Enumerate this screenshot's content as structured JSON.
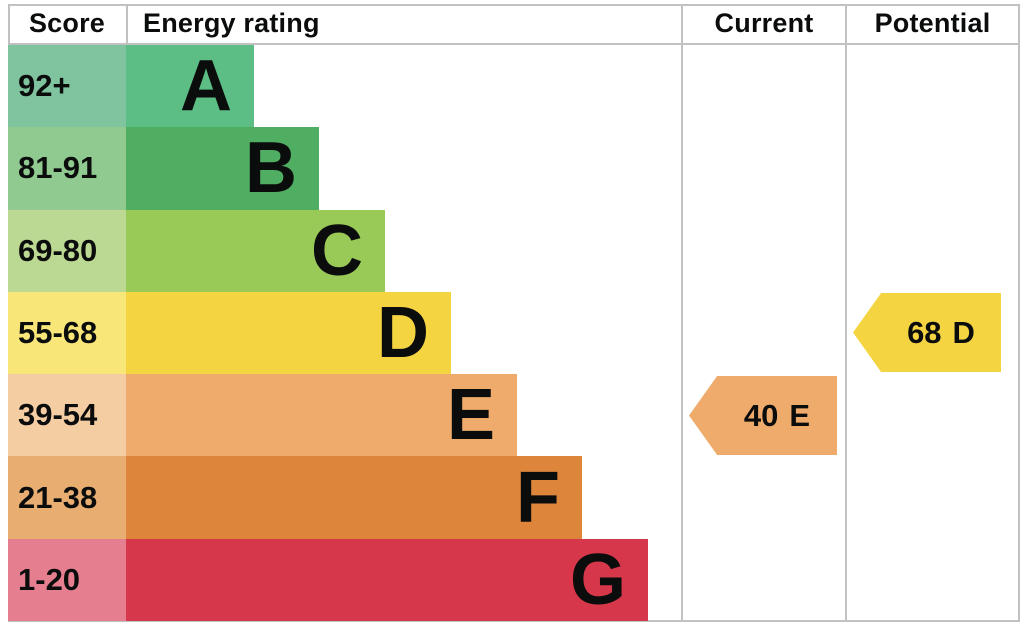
{
  "header": {
    "score": "Score",
    "energy_rating": "Energy rating",
    "current": "Current",
    "potential": "Potential"
  },
  "chart_data": {
    "type": "bar",
    "title": "Energy rating",
    "columns": [
      "Score",
      "Energy rating",
      "Current",
      "Potential"
    ],
    "bands": [
      {
        "grade": "A",
        "score_range": "92+",
        "bar_color": "#5cbe85",
        "score_cell_color": "#7fc49e"
      },
      {
        "grade": "B",
        "score_range": "81-91",
        "bar_color": "#50ae62",
        "score_cell_color": "#90ca90"
      },
      {
        "grade": "C",
        "score_range": "69-80",
        "bar_color": "#99ca58",
        "score_cell_color": "#bcd993"
      },
      {
        "grade": "D",
        "score_range": "55-68",
        "bar_color": "#f5d442",
        "score_cell_color": "#f8e778"
      },
      {
        "grade": "E",
        "score_range": "39-54",
        "bar_color": "#efab6b",
        "score_cell_color": "#f4cda2"
      },
      {
        "grade": "F",
        "score_range": "21-38",
        "bar_color": "#de853c",
        "score_cell_color": "#e7ad71"
      },
      {
        "grade": "G",
        "score_range": "1-20",
        "bar_color": "#d6374a",
        "score_cell_color": "#e57f90"
      }
    ],
    "current": {
      "score": "40",
      "grade": "E",
      "arrow_color": "#efab6b",
      "band": "E"
    },
    "potential": {
      "score": "68",
      "grade": "D",
      "arrow_color": "#f5d442",
      "band": "D"
    }
  }
}
